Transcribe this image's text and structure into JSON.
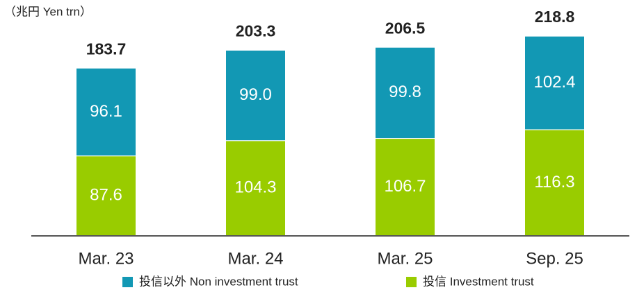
{
  "chart_data": {
    "type": "stacked_bar",
    "unit_label": "（兆円  Yen trn）",
    "categories": [
      "Mar. 23",
      "Mar. 24",
      "Mar. 25",
      "Sep. 25"
    ],
    "series": [
      {
        "name": "投信  Investment trust",
        "color": "#99cc00",
        "values": [
          87.6,
          104.3,
          106.7,
          116.3
        ]
      },
      {
        "name": "投信以外  Non investment trust",
        "color": "#1298b4",
        "values": [
          96.1,
          99.0,
          99.8,
          102.4
        ],
        "value_labels": [
          "96.1",
          "99.0",
          "99.8",
          "102.4"
        ]
      }
    ],
    "totals": [
      183.7,
      203.3,
      206.5,
      218.8
    ]
  }
}
